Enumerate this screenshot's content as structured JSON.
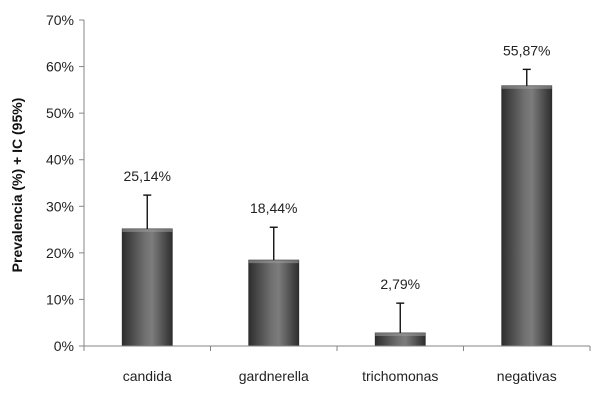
{
  "chart_data": {
    "type": "bar",
    "title": "",
    "xlabel": "",
    "ylabel": "Prevalencia (%) + IC (95%)",
    "ylim": [
      0,
      70
    ],
    "y_ticks": [
      0,
      10,
      20,
      30,
      40,
      50,
      60,
      70
    ],
    "y_tick_labels": [
      "0%",
      "10%",
      "20%",
      "30%",
      "40%",
      "50%",
      "60%",
      "70%"
    ],
    "categories": [
      "candida",
      "gardnerella",
      "trichomonas",
      "negativas"
    ],
    "values": [
      25.14,
      18.44,
      2.79,
      55.87
    ],
    "error_upper": [
      32.4,
      25.5,
      9.2,
      59.4
    ],
    "data_labels": [
      "25,14%",
      "18,44%",
      "2,79%",
      "55,87%"
    ],
    "grid": false,
    "legend": "none",
    "colors": {
      "bar_dark": "#3c3c3c",
      "bar_light": "#8a8a8a",
      "axis": "#868686",
      "text": "#222222"
    }
  }
}
